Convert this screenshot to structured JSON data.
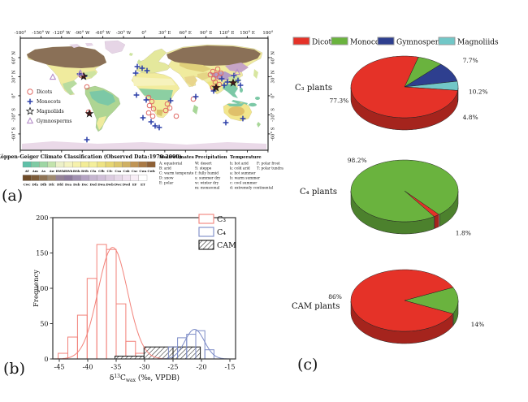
{
  "panel_labels": {
    "a": "(a)",
    "b": "(b)",
    "c": "(c)"
  },
  "map": {
    "lon_ticks": [
      {
        "v": -180,
        "label": "-180°"
      },
      {
        "v": -150,
        "label": "-150° W"
      },
      {
        "v": -120,
        "label": "-120° W"
      },
      {
        "v": -90,
        "label": "-90° W"
      },
      {
        "v": -60,
        "label": "-60° W"
      },
      {
        "v": -30,
        "label": "-30° W"
      },
      {
        "v": 0,
        "label": "0°"
      },
      {
        "v": 30,
        "label": "30° E"
      },
      {
        "v": 60,
        "label": "60° E"
      },
      {
        "v": 90,
        "label": "90° E"
      },
      {
        "v": 120,
        "label": "120° E"
      },
      {
        "v": 150,
        "label": "150° E"
      },
      {
        "v": 180,
        "label": "180°"
      }
    ],
    "lat_ticks": [
      {
        "v": 60,
        "label": "60° N"
      },
      {
        "v": 30,
        "label": "30° N"
      },
      {
        "v": 0,
        "label": "0°"
      },
      {
        "v": -30,
        "label": "-30° S"
      },
      {
        "v": -60,
        "label": "-60° S"
      }
    ],
    "marker_legend": [
      {
        "label": "Dicots",
        "marker": "circle",
        "color": "#e06a64"
      },
      {
        "label": "Monocots",
        "marker": "plus",
        "color": "#2b3fa8"
      },
      {
        "label": "Magnoliids",
        "marker": "star",
        "color": "#1a1a1a"
      },
      {
        "label": "Gymnosperms",
        "marker": "triangle",
        "color": "#b48cc8"
      }
    ],
    "markers": {
      "dicots": [
        [
          82,
          60
        ],
        [
          237,
          41
        ],
        [
          241,
          45
        ],
        [
          245,
          48
        ],
        [
          238,
          50
        ],
        [
          243,
          38
        ],
        [
          247,
          43
        ],
        [
          234,
          45
        ],
        [
          240,
          54
        ],
        [
          245,
          57
        ],
        [
          237,
          61
        ],
        [
          213,
          75
        ],
        [
          158,
          73
        ],
        [
          162,
          78
        ],
        [
          159,
          83
        ],
        [
          164,
          87
        ],
        [
          158,
          92
        ],
        [
          163,
          96
        ],
        [
          181,
          81
        ],
        [
          184,
          86
        ],
        [
          179,
          89
        ],
        [
          192,
          96
        ],
        [
          84,
          91
        ],
        [
          75,
          46
        ]
      ],
      "monocots": [
        [
          144,
          35
        ],
        [
          150,
          37
        ],
        [
          156,
          40
        ],
        [
          142,
          43
        ],
        [
          73,
          44
        ],
        [
          79,
          47
        ],
        [
          248,
          50
        ],
        [
          255,
          54
        ],
        [
          251,
          58
        ],
        [
          268,
          52
        ],
        [
          271,
          58
        ],
        [
          263,
          46
        ],
        [
          238,
          65
        ],
        [
          216,
          72
        ],
        [
          143,
          70
        ],
        [
          155,
          76
        ],
        [
          161,
          103
        ],
        [
          166,
          108
        ],
        [
          171,
          110
        ],
        [
          151,
          98
        ],
        [
          185,
          77
        ],
        [
          253,
          104
        ],
        [
          274,
          99
        ],
        [
          82,
          125
        ]
      ],
      "magnoliids": [
        [
          78,
          47
        ],
        [
          85,
          93
        ],
        [
          241,
          61
        ],
        [
          262,
          55
        ]
      ],
      "gymnosperms": [
        [
          40,
          48
        ],
        [
          267,
          42
        ],
        [
          74,
          43
        ]
      ]
    },
    "classification": {
      "title": "Köppen-Geiger Climate Classification (Observed Data:1976-2000)",
      "rows": [
        {
          "labels": [
            "Af",
            "Am",
            "As",
            "Aw",
            "BWk",
            "BWh",
            "BSk",
            "BSh",
            "Cfa",
            "Cfb",
            "Cfc",
            "Csa",
            "Csb",
            "Csc",
            "Cwa",
            "Cwb"
          ],
          "colors": [
            "#5fc0a8",
            "#7fcba4",
            "#9ed6a4",
            "#c2e3ac",
            "#ecf0c8",
            "#f4f3c0",
            "#f6f1ac",
            "#f3ec96",
            "#f4ef9c",
            "#eee383",
            "#e6d673",
            "#dcc66b",
            "#cfb062",
            "#c09555",
            "#aa7a45",
            "#8f6136"
          ]
        },
        {
          "labels": [
            "Cwc",
            "Dfa",
            "Dfb",
            "Dfc",
            "Dfd",
            "Dsa",
            "Dsb",
            "Dsc",
            "Dsd",
            "Dwa",
            "Dwb",
            "Dwc",
            "Dwd",
            "EF",
            "ET"
          ],
          "colors": [
            "#6e4b28",
            "#7d5c3a",
            "#8f7354",
            "#a08a70",
            "#958297",
            "#8d7a9c",
            "#a08fb0",
            "#b4a3c2",
            "#c6b6d0",
            "#d0bfd8",
            "#dccce0",
            "#e6d8e8",
            "#f0e2f0",
            "#f8eef6",
            "#ffffff"
          ]
        }
      ],
      "key_columns": [
        {
          "title": "Main climates",
          "items": [
            "A: equatorial",
            "B: arid",
            "C: warm temperate",
            "D: snow",
            "E: polar"
          ]
        },
        {
          "title": "Precipitation",
          "items": [
            "W: desert",
            "S: steppe",
            "f: fully humid",
            "s: summer dry",
            "w: winter dry",
            "m: monsoonal"
          ]
        },
        {
          "title": "Temperature",
          "items": [
            "h: hot arid",
            "k: cold arid",
            "a: hot summer",
            "b: warm summer",
            "c: cool summer",
            "d: extremely continental"
          ],
          "items_right": [
            "F: polar frost",
            "T: polar tundra"
          ]
        }
      ]
    }
  },
  "pie_legend": {
    "entries": [
      {
        "label": "Dicots",
        "color": "#e53228"
      },
      {
        "label": "Monocots",
        "color": "#6ab33e"
      },
      {
        "label": "Gymnosperms",
        "color": "#2e3f8f"
      },
      {
        "label": "Magnoliids",
        "color": "#72c7c7"
      }
    ]
  },
  "chart_data": [
    {
      "id": "histogram",
      "type": "histogram",
      "ylabel": "Frequency",
      "xlabel_parts": [
        {
          "t": "δ",
          "k": "n"
        },
        {
          "t": "13",
          "k": "sup"
        },
        {
          "t": "C",
          "k": "n"
        },
        {
          "t": "wax",
          "k": "sub"
        },
        {
          "t": " (‰, VPDB)",
          "k": "n"
        }
      ],
      "xlim": [
        -46.2,
        -13.8
      ],
      "ylim": [
        0,
        200
      ],
      "x_ticks": [
        -45,
        -40,
        -35,
        -30,
        -25,
        -20,
        -15
      ],
      "y_ticks": [
        0,
        50,
        100,
        150,
        200
      ],
      "legend": [
        {
          "label": "C₃",
          "style": "open",
          "color": "#f2827a"
        },
        {
          "label": "C₄",
          "style": "open",
          "color": "#7b8ac6"
        },
        {
          "label": "CAM",
          "style": "hatch",
          "color": "#222222"
        }
      ],
      "series": [
        {
          "name": "C₃",
          "style": "open",
          "color": "#f2827a",
          "bins": [
            {
              "x0": -45.2,
              "x1": -43.5,
              "n": 8
            },
            {
              "x0": -43.5,
              "x1": -41.8,
              "n": 31
            },
            {
              "x0": -41.8,
              "x1": -40.1,
              "n": 62
            },
            {
              "x0": -40.1,
              "x1": -38.4,
              "n": 114
            },
            {
              "x0": -38.4,
              "x1": -36.7,
              "n": 162
            },
            {
              "x0": -36.7,
              "x1": -35.0,
              "n": 155
            },
            {
              "x0": -35.0,
              "x1": -33.3,
              "n": 78
            },
            {
              "x0": -33.3,
              "x1": -31.6,
              "n": 25
            },
            {
              "x0": -31.6,
              "x1": -29.9,
              "n": 8
            },
            {
              "x0": -29.9,
              "x1": -28.2,
              "n": 3
            }
          ]
        },
        {
          "name": "CAM",
          "style": "hatch",
          "color": "#222222",
          "bins": [
            {
              "x0": -35.2,
              "x1": -30.1,
              "n": 4
            },
            {
              "x0": -30.1,
              "x1": -25.0,
              "n": 17
            },
            {
              "x0": -25.0,
              "x1": -20.2,
              "n": 17
            }
          ]
        },
        {
          "name": "C₄",
          "style": "open",
          "color": "#7b8ac6",
          "bins": [
            {
              "x0": -25.8,
              "x1": -24.2,
              "n": 17
            },
            {
              "x0": -24.2,
              "x1": -22.6,
              "n": 30
            },
            {
              "x0": -22.6,
              "x1": -21.0,
              "n": 35
            },
            {
              "x0": -21.0,
              "x1": -19.4,
              "n": 40
            },
            {
              "x0": -19.4,
              "x1": -17.8,
              "n": 13
            }
          ]
        }
      ],
      "curves": [
        {
          "color": "#f2827a",
          "mean": -35.6,
          "sd": 2.6,
          "peak": 158
        },
        {
          "color": "#7b8ac6",
          "mean": -21.2,
          "sd": 1.7,
          "peak": 42
        }
      ]
    },
    {
      "id": "pie-c3",
      "type": "pie",
      "title": "C₃ plants",
      "start_angle": 75,
      "slices": [
        {
          "label": "Monocots",
          "value": 7.7,
          "text": "7.7%",
          "la": 35,
          "lr": 1.5
        },
        {
          "label": "Gymnosperms",
          "value": 10.2,
          "text": "10.2%",
          "la": 5,
          "lr": 1.38
        },
        {
          "label": "Magnoliids",
          "value": 4.8,
          "text": "4.8%",
          "la": -30,
          "lr": 1.42
        },
        {
          "label": "Dicots",
          "value": 77.3,
          "text": "77.3%",
          "la": -160,
          "lr": 1.3
        }
      ]
    },
    {
      "id": "pie-c4",
      "type": "pie",
      "title": "C₄ plants",
      "start_angle": -50,
      "slices": [
        {
          "label": "Dicots",
          "value": 1.8,
          "text": "1.8%",
          "la": -45,
          "lr": 1.55
        },
        {
          "label": "Monocots",
          "value": 98.2,
          "text": "98.2%",
          "la": 132,
          "lr": 1.32
        }
      ]
    },
    {
      "id": "pie-cam",
      "type": "pie",
      "title": "CAM plants",
      "start_angle": 25,
      "slices": [
        {
          "label": "Monocots",
          "value": 14,
          "text": "14%",
          "la": -20,
          "lr": 1.45
        },
        {
          "label": "Dicots",
          "value": 86,
          "text": "86%",
          "la": 175,
          "lr": 1.3
        }
      ]
    }
  ]
}
